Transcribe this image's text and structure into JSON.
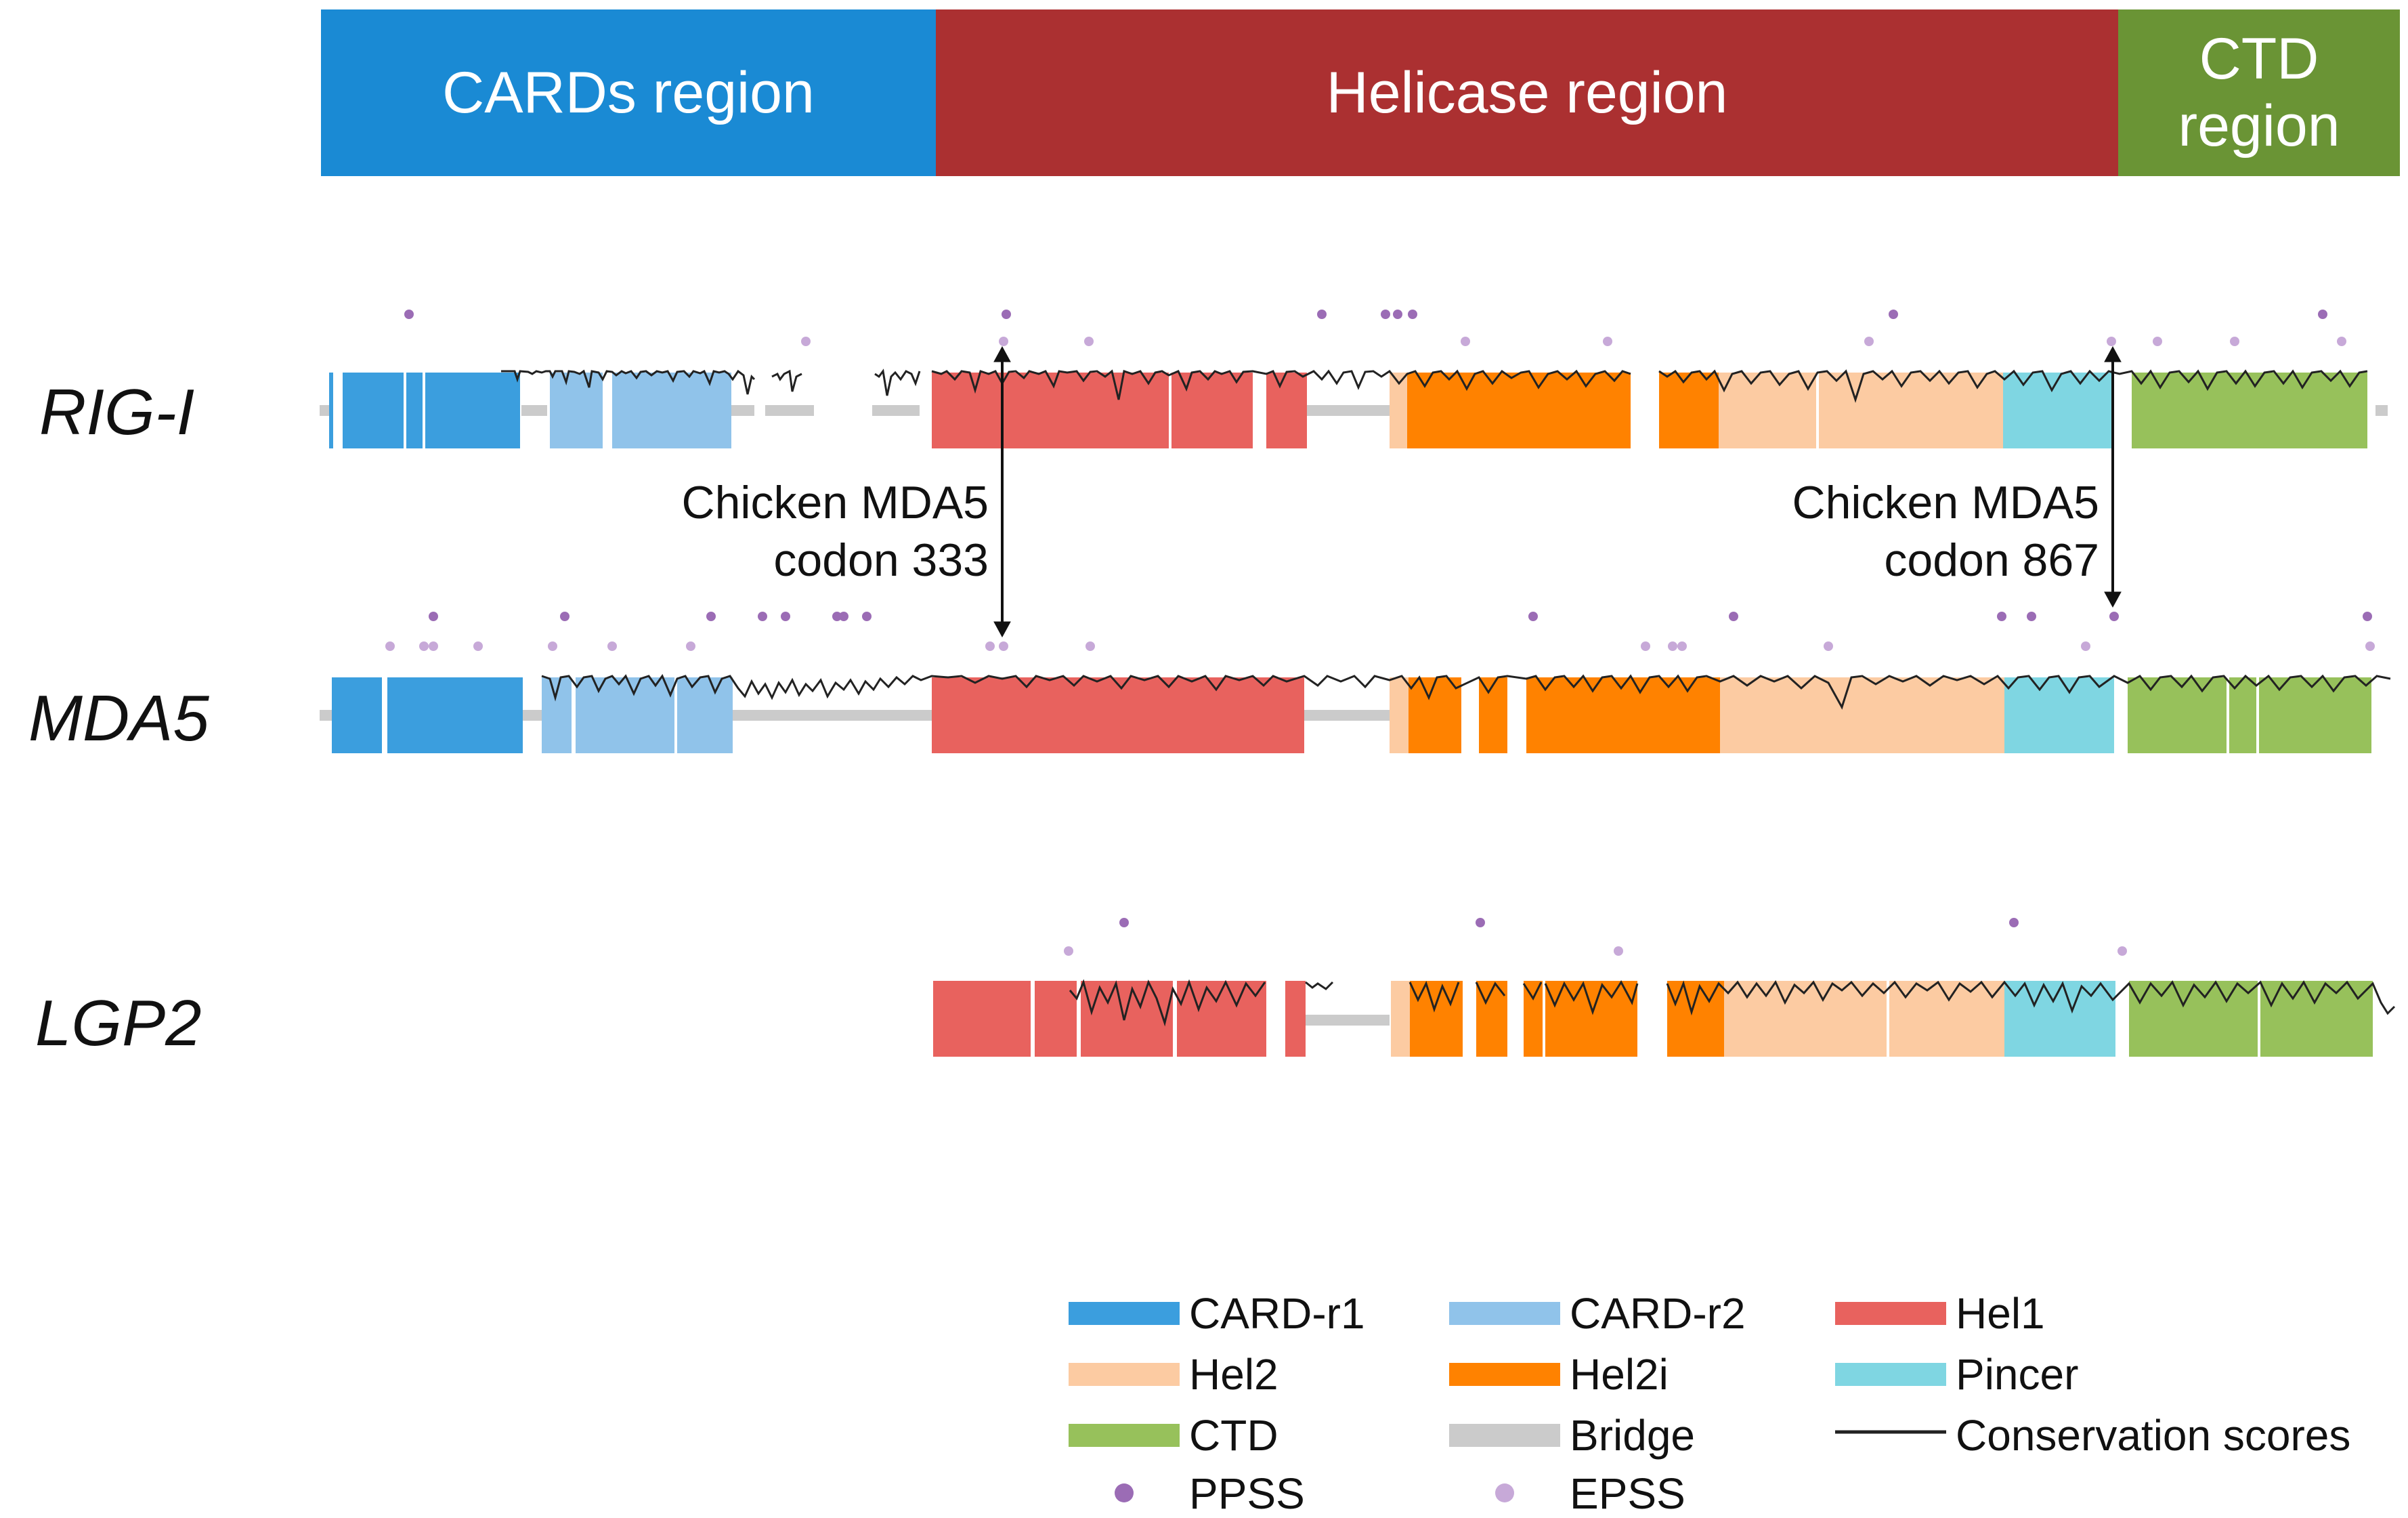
{
  "regions": [
    {
      "label": "CARDs region",
      "color": "#1a8ad4"
    },
    {
      "label": "Helicase region",
      "color": "#ab3031"
    },
    {
      "label": "CTD\nregion",
      "color": "#6a9435"
    }
  ],
  "proteins": [
    {
      "name": "RIG-I"
    },
    {
      "name": "MDA5"
    },
    {
      "name": "LGP2"
    }
  ],
  "annotations": [
    {
      "text": "Chicken MDA5\ncodon 333"
    },
    {
      "text": "Chicken MDA5\ncodon 867"
    }
  ],
  "legend": [
    {
      "label": "CARD-r1",
      "kind": "bar",
      "color": "#3b9ede"
    },
    {
      "label": "CARD-r2",
      "kind": "bar",
      "color": "#90c3ea"
    },
    {
      "label": "Hel1",
      "kind": "bar",
      "color": "#e8625e"
    },
    {
      "label": "Hel2",
      "kind": "bar",
      "color": "#fccba2"
    },
    {
      "label": "Hel2i",
      "kind": "bar",
      "color": "#ff8200"
    },
    {
      "label": "Pincer",
      "kind": "bar",
      "color": "#7fd6e2"
    },
    {
      "label": "CTD",
      "kind": "bar",
      "color": "#97c15b"
    },
    {
      "label": "Bridge",
      "kind": "bar",
      "color": "#cbcbcb"
    },
    {
      "label": "Conservation scores",
      "kind": "line",
      "color": "#222222"
    },
    {
      "label": "PPSS",
      "kind": "dot",
      "color": "#9b6cb5"
    },
    {
      "label": "EPSS",
      "kind": "dot",
      "color": "#c7a9d8"
    }
  ]
}
